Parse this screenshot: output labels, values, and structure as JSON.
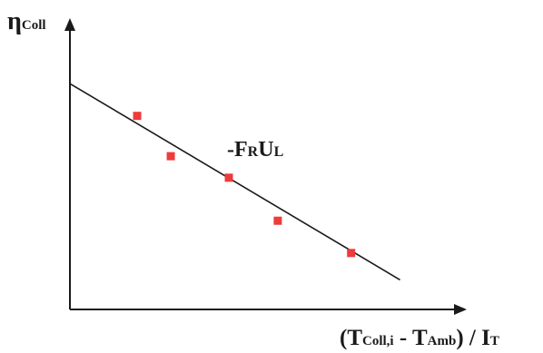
{
  "chart_data": {
    "type": "scatter",
    "ylabel_main": "η",
    "ylabel_sub": "Coll",
    "xlabel": {
      "open": "(T",
      "sub1": "Coll,i",
      "mid": " - T",
      "sub2": "Amb",
      "close": ") / I",
      "sub3": "T"
    },
    "slope_label": {
      "prefix": "-F",
      "sub1": "R",
      "mid": "U",
      "sub2": "L"
    },
    "points": [
      {
        "x": 0.22,
        "y": 0.72
      },
      {
        "x": 0.33,
        "y": 0.57
      },
      {
        "x": 0.52,
        "y": 0.49
      },
      {
        "x": 0.68,
        "y": 0.33
      },
      {
        "x": 0.92,
        "y": 0.21
      }
    ],
    "fit_line": {
      "x": [
        0.0,
        1.08
      ],
      "y": [
        0.84,
        0.11
      ]
    },
    "xlim": [
      0,
      1.42
    ],
    "ylim": [
      0,
      1.07
    ],
    "grid": false,
    "colors": {
      "points": "#ee3b3b",
      "line": "#1a1a1a",
      "axes": "#1a1a1a"
    }
  }
}
